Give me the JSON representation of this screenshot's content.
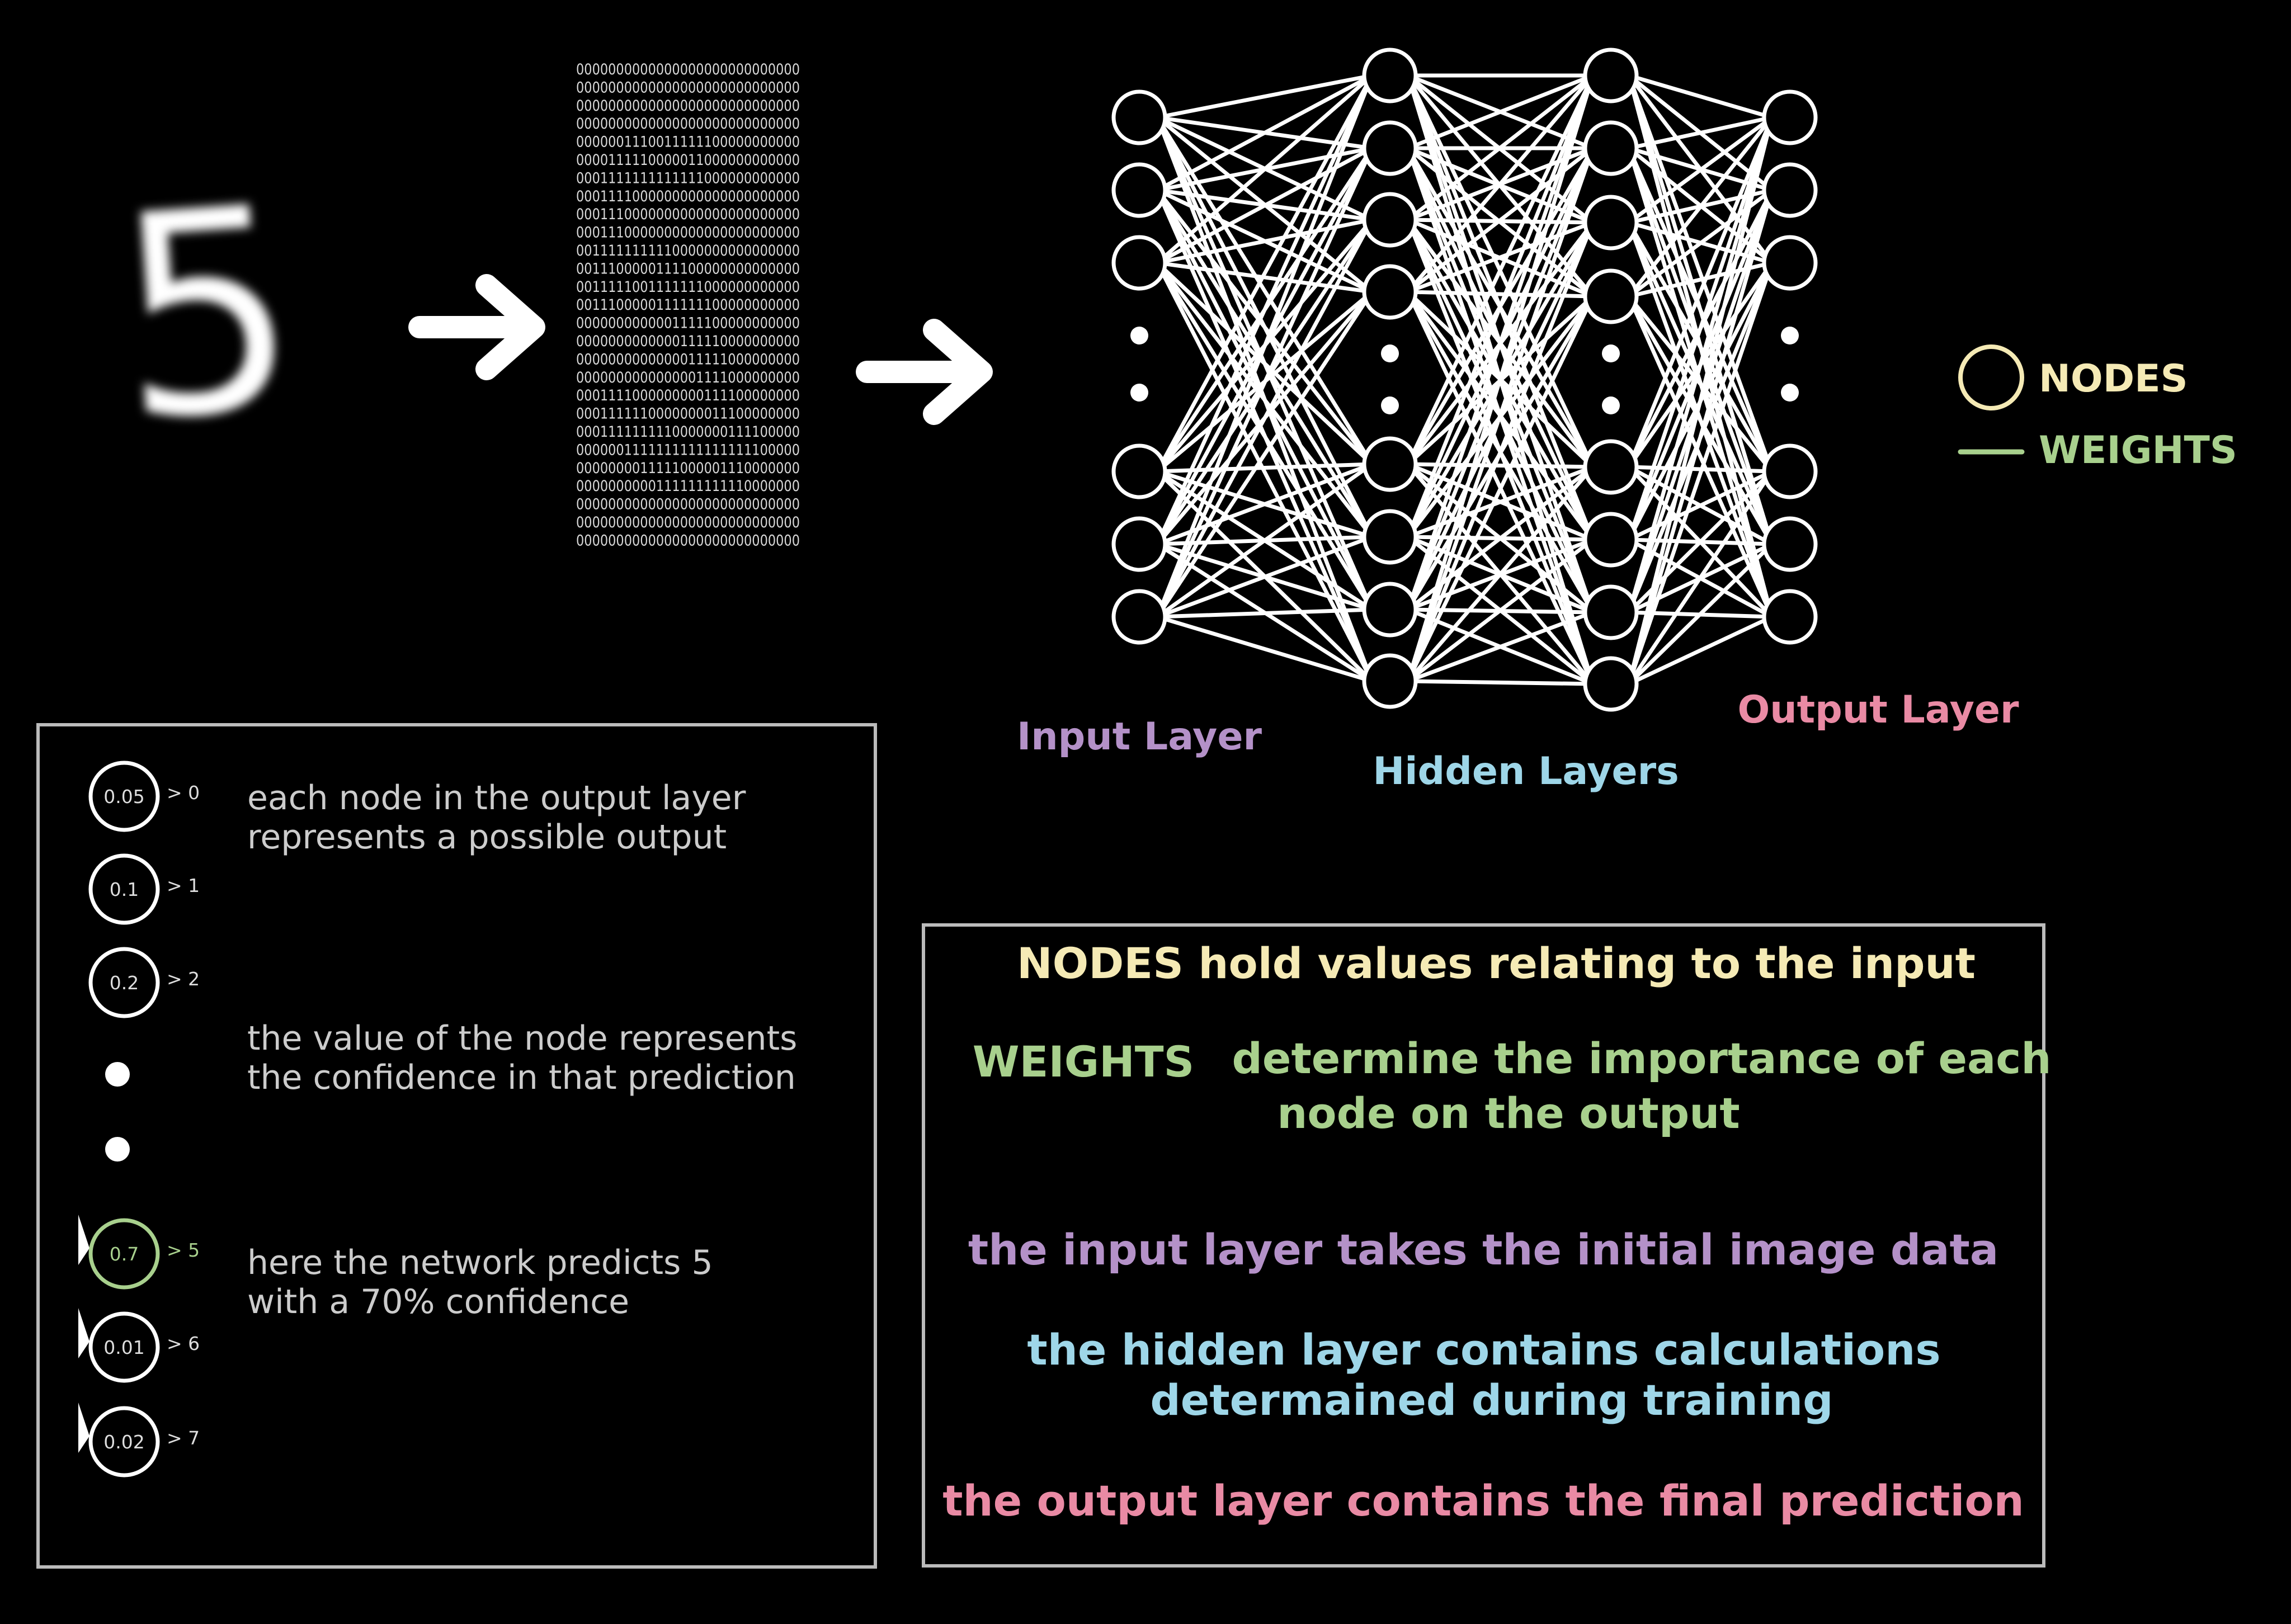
{
  "colors": {
    "nodes": "#f5eab5",
    "weights": "#a8d08d",
    "input": "#b491c8",
    "hidden": "#9ed6e8",
    "output": "#e98aa4",
    "panel_text": "#cccccc",
    "panel_border": "#bbbbbb",
    "highlight": "#a8d08d"
  },
  "digit": "5",
  "matrix_rows": [
    "0000000000000000000000000000",
    "0000000000000000000000000000",
    "0000000000000000000000000000",
    "0000000000000000000000000000",
    "0000001110011111100000000000",
    "0000111110000011000000000000",
    "0001111111111111000000000000",
    "0001111000000000000000000000",
    "0001110000000000000000000000",
    "0001110000000000000000000000",
    "0011111111110000000000000000",
    "0011100000111100000000000000",
    "0011111001111111000000000000",
    "0011100000111111100000000000",
    "0000000000001111100000000000",
    "0000000000000111110000000000",
    "0000000000000011111000000000",
    "0000000000000001111000000000",
    "0001111000000000111100000000",
    "0001111110000000011100000000",
    "0001111111110000000111100000",
    "0000001111111111111111100000",
    "0000000011111000001110000000",
    "0000000000111111111110000000",
    "0000000000000000000000000000",
    "0000000000000000000000000000",
    "0000000000000000000000000000"
  ],
  "legend": {
    "nodes": "NODES",
    "weights": "WEIGHTS"
  },
  "layer_labels": {
    "input": "Input Layer",
    "hidden": "Hidden Layers",
    "output": "Output Layer"
  },
  "output_panel": {
    "nodes": [
      {
        "value": "0.05",
        "label": "> 0",
        "highlight": false
      },
      {
        "value": "0.1",
        "label": "> 1",
        "highlight": false
      },
      {
        "value": "0.2",
        "label": "> 2",
        "highlight": false
      },
      {
        "value": "0.7",
        "label": "> 5",
        "highlight": true
      },
      {
        "value": "0.01",
        "label": "> 6",
        "highlight": false
      },
      {
        "value": "0.02",
        "label": "> 7",
        "highlight": false
      }
    ],
    "notes": [
      {
        "line1": "each node in the output layer",
        "line2": "represents a possible output"
      },
      {
        "line1": "the value of the node represents",
        "line2": "the confidence in that prediction"
      },
      {
        "line1": "here the network predicts 5",
        "line2": "with a 70% confidence"
      }
    ]
  },
  "info_panel": {
    "nodes_line": "NODES hold values relating to the input",
    "weights_word": "WEIGHTS",
    "weights_line1": "determine the importance of each",
    "weights_line2": "node on the output",
    "input_line": "the input layer takes the initial image data",
    "hidden_line1": "the hidden layer contains calculations",
    "hidden_line2": "determained during training",
    "output_line": "the output layer contains the final prediction"
  }
}
